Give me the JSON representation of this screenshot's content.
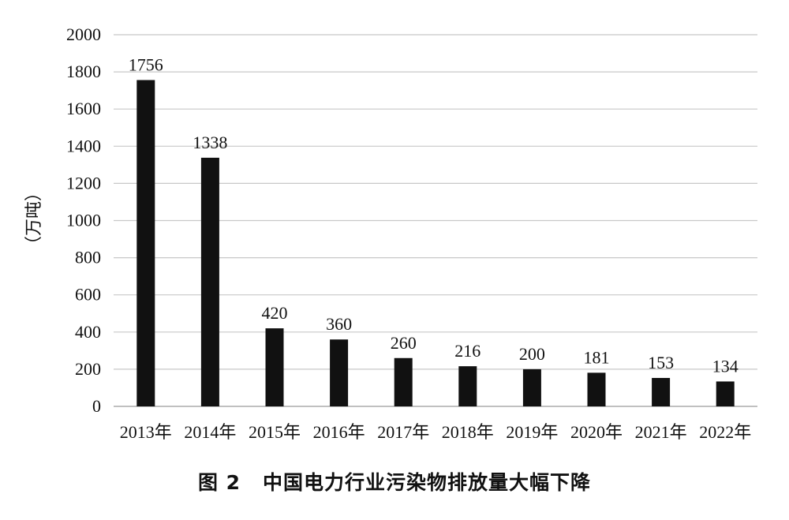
{
  "chart_data": {
    "type": "bar",
    "categories": [
      "2013年",
      "2014年",
      "2015年",
      "2016年",
      "2017年",
      "2018年",
      "2019年",
      "2020年",
      "2021年",
      "2022年"
    ],
    "values": [
      1756,
      1338,
      420,
      360,
      260,
      216,
      200,
      181,
      153,
      134
    ],
    "data_labels": [
      "1756",
      "1338",
      "420",
      "360",
      "260",
      "216",
      "200",
      "181",
      "153",
      "134"
    ],
    "ylabel": "（万吨）",
    "ylim": [
      0,
      2000
    ],
    "yticks": [
      0,
      200,
      400,
      600,
      800,
      1000,
      1200,
      1400,
      1600,
      1800,
      2000
    ],
    "grid": true,
    "bar_color": "#111111",
    "grid_color": "#c8c8c8"
  },
  "caption": {
    "figure_no": "图 2",
    "title": "中国电力行业污染物排放量大幅下降"
  }
}
